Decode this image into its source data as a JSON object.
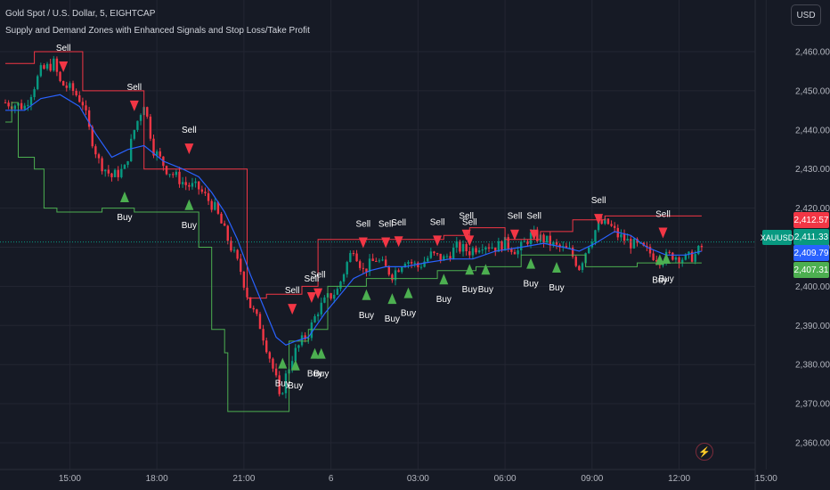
{
  "legend": {
    "title": "Gold Spot / U.S. Dollar, 5, EIGHTCAP",
    "indicator": "Supply and Demand Zones with Enhanced Signals and Stop Loss/Take Profit"
  },
  "currency_button": "USD",
  "symbol_tag": "XAUUSD",
  "price_tags": [
    {
      "value": "2,412.57",
      "color": "#f23645"
    },
    {
      "value": "2,411.33",
      "color": "#089981"
    },
    {
      "value": "2,409.79",
      "color": "#2962ff"
    },
    {
      "value": "2,407.31",
      "color": "#4caf50"
    }
  ],
  "icons": {
    "alert": "lightning-icon"
  },
  "colors": {
    "background": "#161a25",
    "bull": "#089981",
    "bear": "#f23645",
    "ma": "#2962ff",
    "supply_line": "#f23645",
    "demand_line": "#4caf50",
    "buy_marker": "#4caf50",
    "sell_marker": "#f23645",
    "text": "#b2b5be"
  },
  "chart_data": {
    "type": "candlestick",
    "symbol": "XAUUSD",
    "timeframe": "5",
    "ylim": [
      2357,
      2466
    ],
    "y_ticks": [
      "2,460.00",
      "2,450.00",
      "2,440.00",
      "2,430.00",
      "2,420.00",
      "2,410.00",
      "2,400.00",
      "2,390.00",
      "2,380.00",
      "2,370.00",
      "2,360.00"
    ],
    "y_tick_values": [
      2460,
      2450,
      2440,
      2430,
      2420,
      2410,
      2400,
      2390,
      2380,
      2370,
      2360
    ],
    "x_ticks": [
      "15:00",
      "18:00",
      "21:00",
      "6",
      "03:00",
      "06:00",
      "09:00",
      "12:00",
      "15:00"
    ],
    "x_tick_index": [
      20,
      47,
      74,
      101,
      128,
      155,
      182,
      209,
      236
    ],
    "bar_count": 240,
    "current_price": 2411.33,
    "close_path": [
      [
        0,
        2447
      ],
      [
        6,
        2446
      ],
      [
        11,
        2455
      ],
      [
        15,
        2457
      ],
      [
        17,
        2452
      ],
      [
        21,
        2450
      ],
      [
        24,
        2447
      ],
      [
        26,
        2440
      ],
      [
        29,
        2432
      ],
      [
        33,
        2428
      ],
      [
        37,
        2430
      ],
      [
        40,
        2440
      ],
      [
        43,
        2447
      ],
      [
        46,
        2435
      ],
      [
        50,
        2430
      ],
      [
        56,
        2426
      ],
      [
        60,
        2425
      ],
      [
        65,
        2420
      ],
      [
        69,
        2412
      ],
      [
        73,
        2404
      ],
      [
        76,
        2395
      ],
      [
        79,
        2390
      ],
      [
        82,
        2382
      ],
      [
        84,
        2376
      ],
      [
        85,
        2371
      ],
      [
        87,
        2377
      ],
      [
        89,
        2382
      ],
      [
        92,
        2386
      ],
      [
        94,
        2388
      ],
      [
        97,
        2394
      ],
      [
        100,
        2397
      ],
      [
        103,
        2399
      ],
      [
        106,
        2406
      ],
      [
        108,
        2410
      ],
      [
        111,
        2404
      ],
      [
        115,
        2407
      ],
      [
        120,
        2403
      ],
      [
        124,
        2407
      ],
      [
        128,
        2405
      ],
      [
        132,
        2408
      ],
      [
        136,
        2407
      ],
      [
        140,
        2410
      ],
      [
        144,
        2409
      ],
      [
        148,
        2411
      ],
      [
        152,
        2410
      ],
      [
        155,
        2411
      ],
      [
        159,
        2409
      ],
      [
        163,
        2413
      ],
      [
        167,
        2412
      ],
      [
        171,
        2410
      ],
      [
        175,
        2409
      ],
      [
        178,
        2405
      ],
      [
        181,
        2411
      ],
      [
        184,
        2416
      ],
      [
        187,
        2416
      ],
      [
        190,
        2413
      ],
      [
        194,
        2411
      ],
      [
        199,
        2409
      ],
      [
        203,
        2407
      ],
      [
        207,
        2408
      ],
      [
        211,
        2407
      ],
      [
        214,
        2408
      ],
      [
        216,
        2410
      ]
    ],
    "ma_path": [
      [
        0,
        2445
      ],
      [
        6,
        2445
      ],
      [
        11,
        2448
      ],
      [
        17,
        2449
      ],
      [
        23,
        2446
      ],
      [
        28,
        2439
      ],
      [
        33,
        2433
      ],
      [
        38,
        2435
      ],
      [
        43,
        2436
      ],
      [
        49,
        2432
      ],
      [
        55,
        2430
      ],
      [
        60,
        2428
      ],
      [
        64,
        2424
      ],
      [
        68,
        2419
      ],
      [
        72,
        2412
      ],
      [
        76,
        2403
      ],
      [
        80,
        2395
      ],
      [
        84,
        2387
      ],
      [
        87,
        2385
      ],
      [
        90,
        2386
      ],
      [
        94,
        2387
      ],
      [
        99,
        2393
      ],
      [
        103,
        2397
      ],
      [
        108,
        2402
      ],
      [
        113,
        2404
      ],
      [
        118,
        2405
      ],
      [
        124,
        2405
      ],
      [
        130,
        2406
      ],
      [
        138,
        2407
      ],
      [
        145,
        2407
      ],
      [
        152,
        2409
      ],
      [
        160,
        2410
      ],
      [
        167,
        2411
      ],
      [
        173,
        2410
      ],
      [
        178,
        2409
      ],
      [
        183,
        2411
      ],
      [
        189,
        2414
      ],
      [
        194,
        2413
      ],
      [
        199,
        2410
      ],
      [
        205,
        2408
      ],
      [
        211,
        2408
      ],
      [
        216,
        2409
      ]
    ],
    "supply_steps": [
      [
        0,
        2457
      ],
      [
        9,
        2457
      ],
      [
        9,
        2460
      ],
      [
        24,
        2460
      ],
      [
        24,
        2450
      ],
      [
        40,
        2450
      ],
      [
        40,
        2450
      ],
      [
        43,
        2450
      ],
      [
        43,
        2430
      ],
      [
        75,
        2430
      ],
      [
        75,
        2397
      ],
      [
        81,
        2397
      ],
      [
        81,
        2398
      ],
      [
        92,
        2398
      ],
      [
        92,
        2400
      ],
      [
        94,
        2400
      ],
      [
        94,
        2400
      ],
      [
        97,
        2400
      ],
      [
        97,
        2412
      ],
      [
        136,
        2412
      ],
      [
        136,
        2413
      ],
      [
        144,
        2413
      ],
      [
        144,
        2415
      ],
      [
        155,
        2415
      ],
      [
        155,
        2412
      ],
      [
        166,
        2412
      ],
      [
        166,
        2414
      ],
      [
        176,
        2414
      ],
      [
        176,
        2417
      ],
      [
        186,
        2417
      ],
      [
        186,
        2418
      ],
      [
        216,
        2418
      ]
    ],
    "demand_steps": [
      [
        0,
        2442
      ],
      [
        2,
        2442
      ],
      [
        2,
        2447
      ],
      [
        4,
        2447
      ],
      [
        4,
        2433
      ],
      [
        9,
        2433
      ],
      [
        9,
        2430
      ],
      [
        12,
        2430
      ],
      [
        12,
        2420
      ],
      [
        16,
        2420
      ],
      [
        16,
        2419
      ],
      [
        30,
        2419
      ],
      [
        30,
        2420
      ],
      [
        40,
        2420
      ],
      [
        40,
        2419
      ],
      [
        56,
        2419
      ],
      [
        56,
        2419
      ],
      [
        60,
        2419
      ],
      [
        60,
        2410
      ],
      [
        64,
        2410
      ],
      [
        64,
        2389
      ],
      [
        68,
        2389
      ],
      [
        68,
        2383
      ],
      [
        69,
        2383
      ],
      [
        69,
        2368
      ],
      [
        84,
        2368
      ],
      [
        84,
        2368
      ],
      [
        88,
        2368
      ],
      [
        88,
        2386
      ],
      [
        94,
        2386
      ],
      [
        94,
        2389
      ],
      [
        100,
        2389
      ],
      [
        100,
        2400
      ],
      [
        112,
        2400
      ],
      [
        112,
        2402
      ],
      [
        134,
        2402
      ],
      [
        134,
        2404
      ],
      [
        146,
        2404
      ],
      [
        146,
        2405
      ],
      [
        160,
        2405
      ],
      [
        160,
        2408
      ],
      [
        180,
        2408
      ],
      [
        180,
        2405
      ],
      [
        196,
        2405
      ],
      [
        196,
        2406
      ],
      [
        216,
        2406
      ]
    ],
    "signals": [
      {
        "type": "sell",
        "label": "Sell",
        "bar": 18,
        "price": 2457.5
      },
      {
        "type": "sell",
        "label": "Sell",
        "bar": 40,
        "price": 2447.5
      },
      {
        "type": "sell",
        "label": "Sell",
        "bar": 57,
        "price": 2436.5
      },
      {
        "type": "sell",
        "label": "Sell",
        "bar": 89,
        "price": 2395.5
      },
      {
        "type": "sell",
        "label": "Sell",
        "bar": 95,
        "price": 2398.5
      },
      {
        "type": "sell",
        "label": "Sell",
        "bar": 97,
        "price": 2399.5
      },
      {
        "type": "sell",
        "label": "Sell",
        "bar": 111,
        "price": 2412.5
      },
      {
        "type": "sell",
        "label": "Sell",
        "bar": 118,
        "price": 2412.5
      },
      {
        "type": "sell",
        "label": "Sell",
        "bar": 122,
        "price": 2412.8
      },
      {
        "type": "sell",
        "label": "Sell",
        "bar": 134,
        "price": 2413.0
      },
      {
        "type": "sell",
        "label": "Sell",
        "bar": 143,
        "price": 2414.5
      },
      {
        "type": "sell",
        "label": "Sell",
        "bar": 144,
        "price": 2413.0
      },
      {
        "type": "sell",
        "label": "Sell",
        "bar": 158,
        "price": 2414.5
      },
      {
        "type": "sell",
        "label": "Sell",
        "bar": 164,
        "price": 2414.5
      },
      {
        "type": "sell",
        "label": "Sell",
        "bar": 184,
        "price": 2418.5
      },
      {
        "type": "sell",
        "label": "Sell",
        "bar": 204,
        "price": 2415.0
      },
      {
        "type": "buy",
        "label": "Buy",
        "bar": 37,
        "price": 2421.5
      },
      {
        "type": "buy",
        "label": "Buy",
        "bar": 57,
        "price": 2419.5
      },
      {
        "type": "buy",
        "label": "Buy",
        "bar": 86,
        "price": 2379.0
      },
      {
        "type": "buy",
        "label": "Buy",
        "bar": 90,
        "price": 2378.5
      },
      {
        "type": "buy",
        "label": "Buy",
        "bar": 96,
        "price": 2381.5
      },
      {
        "type": "buy",
        "label": "Buy",
        "bar": 98,
        "price": 2381.5
      },
      {
        "type": "buy",
        "label": "Buy",
        "bar": 112,
        "price": 2396.5
      },
      {
        "type": "buy",
        "label": "Buy",
        "bar": 120,
        "price": 2395.5
      },
      {
        "type": "buy",
        "label": "Buy",
        "bar": 125,
        "price": 2397.0
      },
      {
        "type": "buy",
        "label": "Buy",
        "bar": 136,
        "price": 2400.5
      },
      {
        "type": "buy",
        "label": "Buy",
        "bar": 144,
        "price": 2403.0
      },
      {
        "type": "buy",
        "label": "Buy",
        "bar": 149,
        "price": 2403.0
      },
      {
        "type": "buy",
        "label": "Buy",
        "bar": 163,
        "price": 2404.5
      },
      {
        "type": "buy",
        "label": "Buy",
        "bar": 171,
        "price": 2403.5
      },
      {
        "type": "buy",
        "label": "Buy",
        "bar": 203,
        "price": 2405.5
      },
      {
        "type": "buy",
        "label": "Buy",
        "bar": 205,
        "price": 2405.8
      }
    ],
    "grid": true,
    "legend": "top-left"
  }
}
